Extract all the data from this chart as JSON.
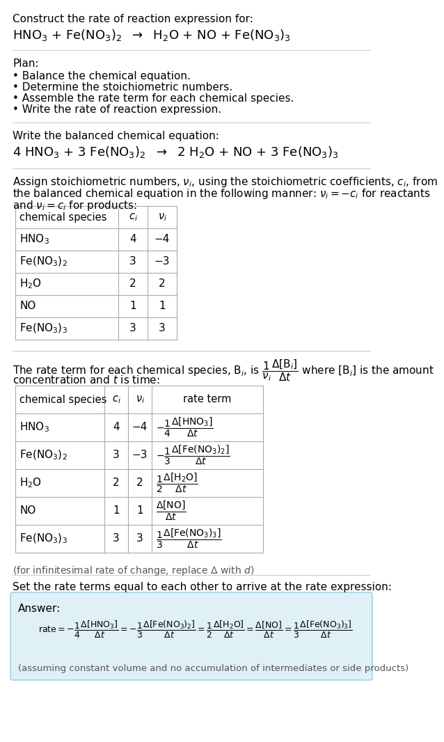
{
  "bg_color": "#ffffff",
  "title_line1": "Construct the rate of reaction expression for:",
  "reaction_unbalanced": "HNO$_3$ + Fe(NO$_3$)$_2$  $\\rightarrow$  H$_2$O + NO + Fe(NO$_3$)$_3$",
  "plan_header": "Plan:",
  "plan_items": [
    "• Balance the chemical equation.",
    "• Determine the stoichiometric numbers.",
    "• Assemble the rate term for each chemical species.",
    "• Write the rate of reaction expression."
  ],
  "balanced_header": "Write the balanced chemical equation:",
  "reaction_balanced": "4 HNO$_3$ + 3 Fe(NO$_3$)$_2$  $\\rightarrow$  2 H$_2$O + NO + 3 Fe(NO$_3$)$_3$",
  "stoich_intro1": "Assign stoichiometric numbers, $\\nu_i$, using the stoichiometric coefficients, $c_i$, from",
  "stoich_intro2": "the balanced chemical equation in the following manner: $\\nu_i = -c_i$ for reactants",
  "stoich_intro3": "and $\\nu_i = c_i$ for products:",
  "table1_headers": [
    "chemical species",
    "$c_i$",
    "$\\nu_i$"
  ],
  "table1_data": [
    [
      "HNO$_3$",
      "4",
      "−4"
    ],
    [
      "Fe(NO$_3$)$_2$",
      "3",
      "−3"
    ],
    [
      "H$_2$O",
      "2",
      "2"
    ],
    [
      "NO",
      "1",
      "1"
    ],
    [
      "Fe(NO$_3$)$_3$",
      "3",
      "3"
    ]
  ],
  "rate_intro1": "The rate term for each chemical species, B$_i$, is $\\dfrac{1}{\\nu_i}\\dfrac{\\Delta[\\mathrm{B}_i]}{\\Delta t}$ where [B$_i$] is the amount",
  "rate_intro2": "concentration and $t$ is time:",
  "table2_headers": [
    "chemical species",
    "$c_i$",
    "$\\nu_i$",
    "rate term"
  ],
  "table2_data": [
    [
      "HNO$_3$",
      "4",
      "−4",
      "$-\\dfrac{1}{4}\\dfrac{\\Delta[\\mathrm{HNO_3}]}{\\Delta t}$"
    ],
    [
      "Fe(NO$_3$)$_2$",
      "3",
      "−3",
      "$-\\dfrac{1}{3}\\dfrac{\\Delta[\\mathrm{Fe(NO_3)_2}]}{\\Delta t}$"
    ],
    [
      "H$_2$O",
      "2",
      "2",
      "$\\dfrac{1}{2}\\dfrac{\\Delta[\\mathrm{H_2O}]}{\\Delta t}$"
    ],
    [
      "NO",
      "1",
      "1",
      "$\\dfrac{\\Delta[\\mathrm{NO}]}{\\Delta t}$"
    ],
    [
      "Fe(NO$_3$)$_3$",
      "3",
      "3",
      "$\\dfrac{1}{3}\\dfrac{\\Delta[\\mathrm{Fe(NO_3)_3}]}{\\Delta t}$"
    ]
  ],
  "infinitesimal_note": "(for infinitesimal rate of change, replace Δ with $d$)",
  "set_equal_text": "Set the rate terms equal to each other to arrive at the rate expression:",
  "answer_box_color": "#dff0f7",
  "answer_box_border": "#99ccdd",
  "answer_label": "Answer:",
  "rate_expression": "$\\mathrm{rate} = -\\dfrac{1}{4}\\dfrac{\\Delta[\\mathrm{HNO_3}]}{\\Delta t} = -\\dfrac{1}{3}\\dfrac{\\Delta[\\mathrm{Fe(NO_3)_2}]}{\\Delta t} = \\dfrac{1}{2}\\dfrac{\\Delta[\\mathrm{H_2O}]}{\\Delta t} = \\dfrac{\\Delta[\\mathrm{NO}]}{\\Delta t} = \\dfrac{1}{3}\\dfrac{\\Delta[\\mathrm{Fe(NO_3)_3}]}{\\Delta t}$",
  "constant_volume_note": "(assuming constant volume and no accumulation of intermediates or side products)"
}
